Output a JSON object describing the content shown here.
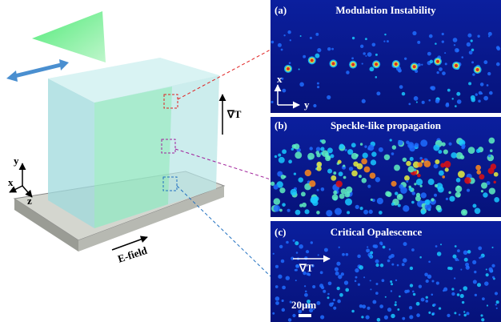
{
  "figure": {
    "left": {
      "axes": {
        "x": "x",
        "y": "y",
        "z": "z"
      },
      "gradient_label": "∇T",
      "field_label": "E-field"
    },
    "panels": [
      {
        "label": "(a)",
        "title": "Modulation Instability",
        "axis_x": "x",
        "axis_y": "y"
      },
      {
        "label": "(b)",
        "title": "Speckle-like propagation"
      },
      {
        "label": "(c)",
        "title": "Critical Opalescence",
        "gradient_label": "∇T",
        "scale_bar": "20μm"
      }
    ]
  }
}
